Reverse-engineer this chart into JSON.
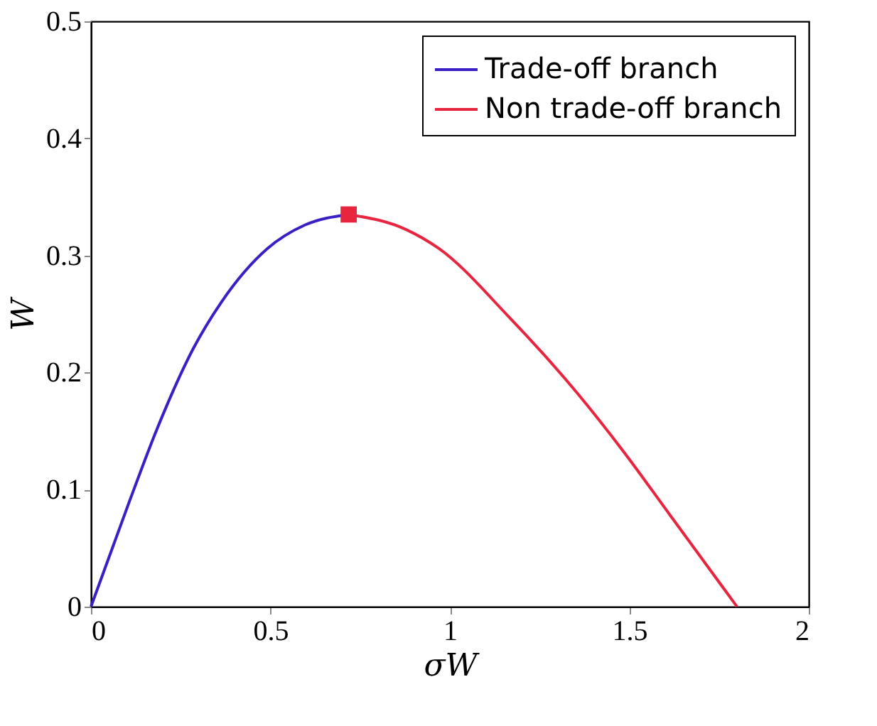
{
  "chart_data": {
    "type": "line",
    "xlabel": "σW",
    "ylabel": "W",
    "xlim": [
      0,
      2
    ],
    "xticks": [
      0,
      0.5,
      1,
      1.5,
      2
    ],
    "ylim": [
      0,
      0.5
    ],
    "yticks": [
      0,
      0.1,
      0.2,
      0.3,
      0.4,
      0.5
    ],
    "grid": false,
    "legend": "top right",
    "line_style": "solid",
    "series": [
      {
        "name": "Trade-off branch",
        "color": "#3a1fc4",
        "marker": "none",
        "x": [
          0,
          0.106,
          0.183,
          0.286,
          0.363,
          0.492,
          0.596,
          0.718
        ],
        "values": [
          0,
          0.089,
          0.151,
          0.221,
          0.26,
          0.306,
          0.326,
          0.335
        ]
      },
      {
        "name": "Non trade-off branch",
        "color": "#e8253f",
        "marker": "none",
        "x": [
          0.718,
          0.879,
          0.969,
          1.163,
          1.356,
          1.485,
          1.614,
          1.8
        ],
        "values": [
          0.335,
          0.322,
          0.306,
          0.248,
          0.182,
          0.132,
          0.078,
          0
        ]
      },
      {
        "color": "#e8253f",
        "type": "scatter",
        "marker": "square",
        "x": [
          0.718
        ],
        "values": [
          0.335
        ]
      }
    ]
  }
}
